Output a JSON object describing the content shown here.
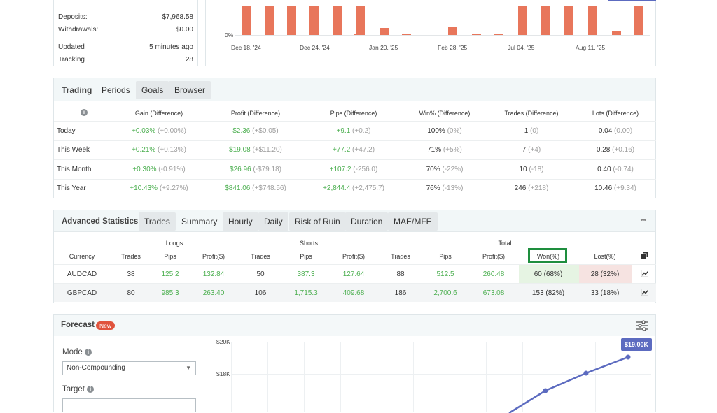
{
  "summary": {
    "deposits_label": "Deposits:",
    "deposits_value": "$7,968.58",
    "withdrawals_label": "Withdrawals:",
    "withdrawals_value": "$0.00",
    "updated_label": "Updated",
    "updated_value": "5 minutes ago",
    "tracking_label": "Tracking",
    "tracking_value": "28"
  },
  "top_chart": {
    "y_tick": "0%",
    "x_ticks": [
      "Dec 18, '24",
      "Dec 24, '24",
      "Jan 20, '25",
      "Feb 28, '25",
      "Jul 04, '25",
      "Aug 11, '25"
    ],
    "bar_color": "#e8765b"
  },
  "trading": {
    "tabs": [
      "Trading",
      "Periods",
      "Goals",
      "Browser"
    ],
    "headers": [
      "Gain (Difference)",
      "Profit (Difference)",
      "Pips (Difference)",
      "Win% (Difference)",
      "Trades (Difference)",
      "Lots (Difference)"
    ],
    "rows": [
      {
        "period": "Today",
        "gain": "+0.03%",
        "gain_diff": "(+0.00%)",
        "profit": "$2.36",
        "profit_diff": "(+$0.05)",
        "pips": "+9.1",
        "pips_diff": "(+0.2)",
        "win": "100%",
        "win_diff": "(0%)",
        "trades": "1",
        "trades_diff": "(0)",
        "lots": "0.04",
        "lots_diff": "(0.00)"
      },
      {
        "period": "This Week",
        "gain": "+0.21%",
        "gain_diff": "(+0.13%)",
        "profit": "$19.08",
        "profit_diff": "(+$11.20)",
        "pips": "+77.2",
        "pips_diff": "(+47.2)",
        "win": "71%",
        "win_diff": "(+5%)",
        "trades": "7",
        "trades_diff": "(+4)",
        "lots": "0.28",
        "lots_diff": "(+0.16)"
      },
      {
        "period": "This Month",
        "gain": "+0.30%",
        "gain_diff": "(-0.91%)",
        "profit": "$26.96",
        "profit_diff": "(-$79.18)",
        "pips": "+107.2",
        "pips_diff": "(-256.0)",
        "win": "70%",
        "win_diff": "(-22%)",
        "trades": "10",
        "trades_diff": "(-18)",
        "lots": "0.40",
        "lots_diff": "(-0.74)"
      },
      {
        "period": "This Year",
        "gain": "+10.43%",
        "gain_diff": "(+9.27%)",
        "profit": "$841.06",
        "profit_diff": "(+$748.56)",
        "pips": "+2,844.4",
        "pips_diff": "(+2,475.7)",
        "win": "76%",
        "win_diff": "(-13%)",
        "trades": "246",
        "trades_diff": "(+218)",
        "lots": "10.46",
        "lots_diff": "(+9.34)"
      }
    ]
  },
  "advanced": {
    "title": "Advanced Statistics",
    "tabs": [
      "Trades",
      "Summary",
      "Hourly",
      "Daily",
      "Risk of Ruin",
      "Duration",
      "MAE/MFE"
    ],
    "more": "•••",
    "groups": {
      "longs": "Longs",
      "shorts": "Shorts",
      "total": "Total"
    },
    "headers": [
      "Currency",
      "Trades",
      "Pips",
      "Profit($)",
      "Trades",
      "Pips",
      "Profit($)",
      "Trades",
      "Pips",
      "Profit($)",
      "Won(%)",
      "Lost(%)"
    ],
    "rows": [
      {
        "currency": "AUDCAD",
        "l_trades": "38",
        "l_pips": "125.2",
        "l_profit": "132.84",
        "s_trades": "50",
        "s_pips": "387.3",
        "s_profit": "127.64",
        "t_trades": "88",
        "t_pips": "512.5",
        "t_profit": "260.48",
        "won": "60 (68%)",
        "lost": "28 (32%)"
      },
      {
        "currency": "GBPCAD",
        "l_trades": "80",
        "l_pips": "985.3",
        "l_profit": "263.40",
        "s_trades": "106",
        "s_pips": "1,715.3",
        "s_profit": "409.68",
        "t_trades": "186",
        "t_pips": "2,700.6",
        "t_profit": "673.08",
        "won": "153 (82%)",
        "lost": "33 (18%)"
      }
    ]
  },
  "forecast": {
    "title": "Forecast",
    "badge": "New",
    "mode_label": "Mode",
    "mode_value": "Non-Compounding",
    "target_label": "Target",
    "y_ticks": [
      "$20K",
      "$18K"
    ],
    "tooltip": "$19.00K",
    "line_color": "#5c6bc0"
  }
}
